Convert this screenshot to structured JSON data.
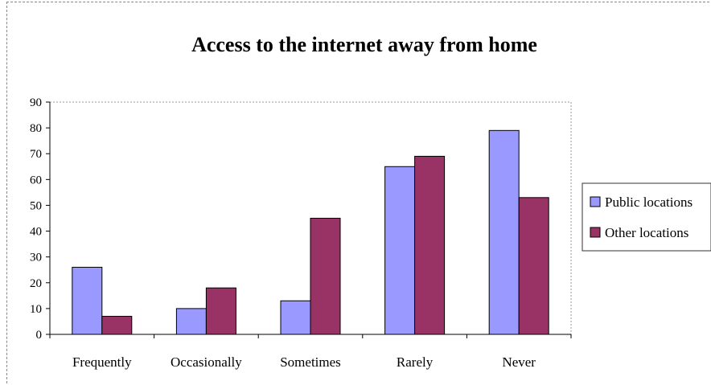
{
  "chart_data": {
    "type": "bar",
    "title": "Access to the internet away from home",
    "xlabel": "",
    "ylabel": "",
    "categories": [
      "Frequently",
      "Occasionally",
      "Sometimes",
      "Rarely",
      "Never"
    ],
    "series": [
      {
        "name": "Public locations",
        "values": [
          26,
          10,
          13,
          65,
          79
        ],
        "color": "#9999ff"
      },
      {
        "name": "Other locations",
        "values": [
          7,
          18,
          45,
          69,
          53
        ],
        "color": "#993366"
      }
    ],
    "ylim": [
      0,
      90
    ],
    "yticks": [
      0,
      10,
      20,
      30,
      40,
      50,
      60,
      70,
      80,
      90
    ],
    "grid": false,
    "legend_position": "right"
  }
}
